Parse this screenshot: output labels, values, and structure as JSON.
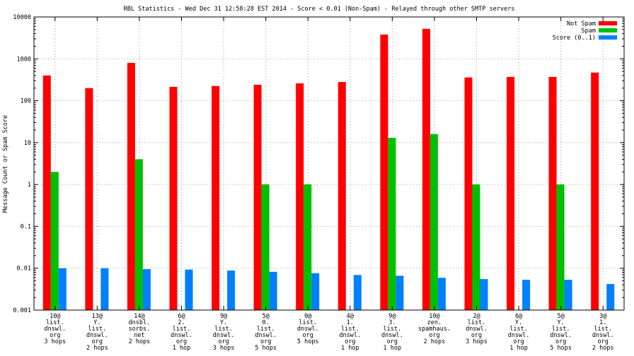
{
  "chart_data": {
    "type": "bar",
    "title": "RBL Statistics - Wed Dec 31 12:58:28 EST 2014 - Score < 0.01 (Non-Spam) - Relayed through other SMTP servers",
    "ylabel": "Message Count or Spam Score",
    "xlabel": "",
    "yscale": "log",
    "ylim": [
      0.001,
      10000
    ],
    "yticks": [
      "0.001",
      "0.01",
      "0.1",
      "1",
      "10",
      "100",
      "1000",
      "10000"
    ],
    "grid": true,
    "legend_position": "top-right",
    "categories": [
      [
        "10@",
        "list.",
        "dnswl.",
        "org",
        "3 hops"
      ],
      [
        "13@",
        "Y.",
        "list.",
        "dnswl.",
        "org",
        "2 hops"
      ],
      [
        "14@",
        "dnsbl.",
        "sorbs.",
        "net",
        "2 hops"
      ],
      [
        "6@",
        "2.",
        "list.",
        "dnswl.",
        "org",
        "1 hop"
      ],
      [
        "9@",
        "Y.",
        "list.",
        "dnswl.",
        "org",
        "3 hops"
      ],
      [
        "5@",
        "0.",
        "list.",
        "dnswl.",
        "org",
        "5 hops"
      ],
      [
        "0@",
        "list.",
        "dnswl.",
        "org",
        "5 hops"
      ],
      [
        "4@",
        "1.",
        "list.",
        "dnswl.",
        "org",
        "1 hop"
      ],
      [
        "9@",
        "3.",
        "list.",
        "dnswl.",
        "org",
        "1 hop"
      ],
      [
        "10@",
        "zen.",
        "spamhaus.",
        "org",
        "2 hops"
      ],
      [
        "2@",
        "list.",
        "dnswl.",
        "org",
        "3 hops"
      ],
      [
        "6@",
        "Y.",
        "list.",
        "dnswl.",
        "org",
        "1 hop"
      ],
      [
        "5@",
        "Y.",
        "list.",
        "dnswl.",
        "org",
        "5 hops"
      ],
      [
        "3@",
        "1.",
        "list.",
        "dnswl.",
        "org",
        "2 hops"
      ]
    ],
    "series": [
      {
        "name": "Not Spam",
        "color": "#ff0000",
        "values": [
          400,
          200,
          800,
          215,
          225,
          240,
          260,
          280,
          3800,
          5200,
          360,
          370,
          370,
          470
        ]
      },
      {
        "name": "Spam",
        "color": "#00c000",
        "values": [
          2,
          null,
          4,
          null,
          null,
          1,
          1,
          null,
          13,
          16,
          1,
          null,
          1,
          null
        ]
      },
      {
        "name": "Score (0..1)",
        "color": "#0080ff",
        "values": [
          0.01,
          0.01,
          0.0095,
          0.0093,
          0.0088,
          0.0082,
          0.0076,
          0.0069,
          0.0066,
          0.0059,
          0.0055,
          0.0053,
          0.0053,
          0.0042
        ]
      }
    ]
  }
}
